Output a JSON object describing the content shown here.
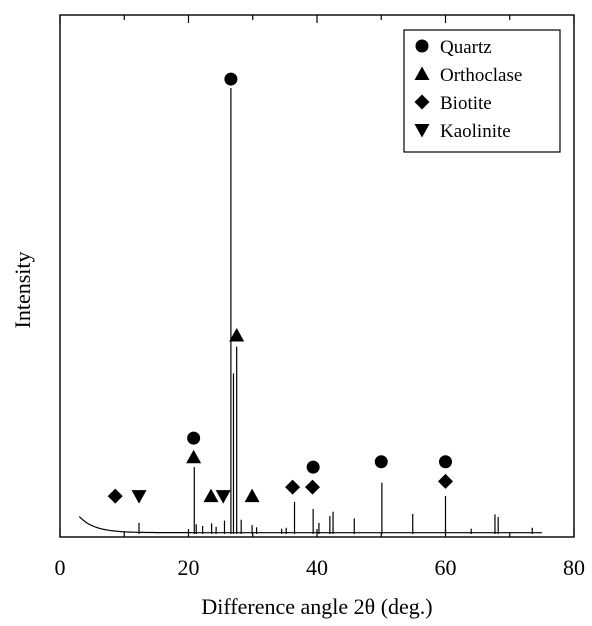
{
  "chart_data": {
    "type": "line",
    "xlabel": "Difference angle 2θ (deg.)",
    "ylabel": "Intensity",
    "xlim": [
      0,
      80
    ],
    "ylim": [
      0,
      100
    ],
    "xticks": [
      0,
      20,
      40,
      60,
      80
    ],
    "grid": false,
    "legend": {
      "position": "top-right",
      "entries": [
        {
          "name": "Quartz",
          "marker": "circle"
        },
        {
          "name": "Orthoclase",
          "marker": "triangle-up"
        },
        {
          "name": "Biotite",
          "marker": "diamond"
        },
        {
          "name": "Kaolinite",
          "marker": "triangle-down"
        }
      ]
    },
    "series": [
      {
        "name": "XRD pattern",
        "peaks": [
          {
            "x": 12.3,
            "y": 2.5
          },
          {
            "x": 20.9,
            "y": 15.0
          },
          {
            "x": 21.2,
            "y": 2.2
          },
          {
            "x": 22.2,
            "y": 1.8
          },
          {
            "x": 23.6,
            "y": 2.4
          },
          {
            "x": 24.3,
            "y": 1.6
          },
          {
            "x": 25.6,
            "y": 3.0
          },
          {
            "x": 26.6,
            "y": 100.0
          },
          {
            "x": 27.0,
            "y": 36.0
          },
          {
            "x": 27.5,
            "y": 42.0
          },
          {
            "x": 28.2,
            "y": 3.2
          },
          {
            "x": 29.9,
            "y": 2.0
          },
          {
            "x": 30.6,
            "y": 1.5
          },
          {
            "x": 34.5,
            "y": 1.2
          },
          {
            "x": 35.2,
            "y": 1.4
          },
          {
            "x": 36.5,
            "y": 7.2
          },
          {
            "x": 39.4,
            "y": 5.6
          },
          {
            "x": 40.3,
            "y": 2.5
          },
          {
            "x": 42.0,
            "y": 4.0
          },
          {
            "x": 42.5,
            "y": 5.0
          },
          {
            "x": 45.8,
            "y": 3.5
          },
          {
            "x": 50.1,
            "y": 11.5
          },
          {
            "x": 54.9,
            "y": 4.5
          },
          {
            "x": 60.0,
            "y": 8.5
          },
          {
            "x": 64.0,
            "y": 1.2
          },
          {
            "x": 67.7,
            "y": 4.4
          },
          {
            "x": 68.2,
            "y": 3.8
          },
          {
            "x": 73.5,
            "y": 1.4
          }
        ]
      }
    ],
    "annotations": [
      {
        "mineral": "Biotite",
        "marker": "diamond",
        "x": 8.6,
        "y": 8.5
      },
      {
        "mineral": "Kaolinite",
        "marker": "triangle-down",
        "x": 12.3,
        "y": 8.5
      },
      {
        "mineral": "Quartz",
        "marker": "circle",
        "x": 20.8,
        "y": 21.5
      },
      {
        "mineral": "Orthoclase",
        "marker": "triangle-up",
        "x": 20.8,
        "y": 17.2
      },
      {
        "mineral": "Orthoclase",
        "marker": "triangle-up",
        "x": 23.5,
        "y": 8.5
      },
      {
        "mineral": "Kaolinite",
        "marker": "triangle-down",
        "x": 25.4,
        "y": 8.5
      },
      {
        "mineral": "Quartz",
        "marker": "circle",
        "x": 26.6,
        "y": 102.0
      },
      {
        "mineral": "Orthoclase",
        "marker": "triangle-up",
        "x": 27.5,
        "y": 44.5
      },
      {
        "mineral": "Orthoclase",
        "marker": "triangle-up",
        "x": 29.9,
        "y": 8.5
      },
      {
        "mineral": "Biotite",
        "marker": "diamond",
        "x": 36.2,
        "y": 10.5
      },
      {
        "mineral": "Biotite",
        "marker": "diamond",
        "x": 39.3,
        "y": 10.5
      },
      {
        "mineral": "Quartz",
        "marker": "circle",
        "x": 39.4,
        "y": 15.0
      },
      {
        "mineral": "Quartz",
        "marker": "circle",
        "x": 50.0,
        "y": 16.2
      },
      {
        "mineral": "Quartz",
        "marker": "circle",
        "x": 60.0,
        "y": 16.2
      },
      {
        "mineral": "Biotite",
        "marker": "diamond",
        "x": 60.0,
        "y": 11.8
      }
    ]
  }
}
